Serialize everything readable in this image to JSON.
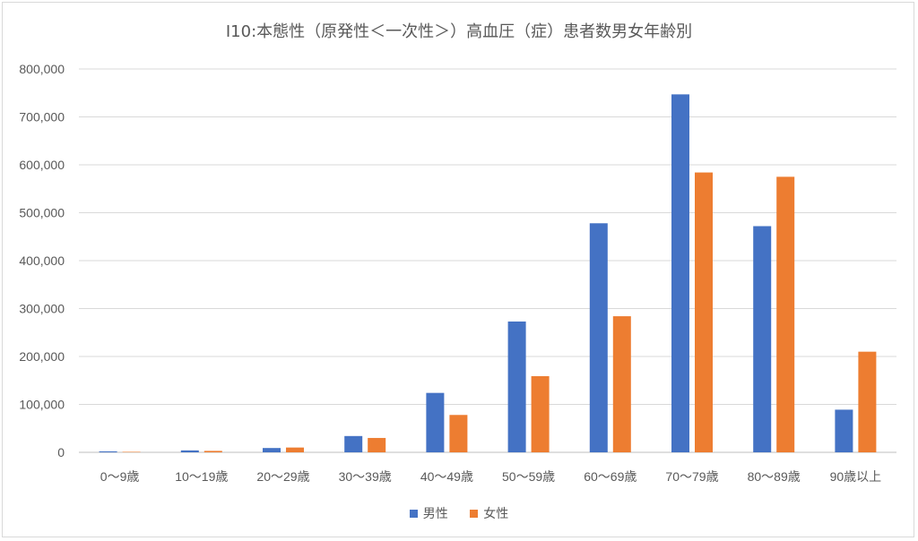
{
  "chart_data": {
    "type": "bar",
    "title": "I10:本態性（原発性＜一次性＞）高血圧（症）患者数男女年齢別",
    "categories": [
      "0〜9歳",
      "10〜19歳",
      "20〜29歳",
      "30〜39歳",
      "40〜49歳",
      "50〜59歳",
      "60〜69歳",
      "70〜79歳",
      "80〜89歳",
      "90歳以上"
    ],
    "series": [
      {
        "name": "男性",
        "color": "#4472c4",
        "values": [
          2000,
          4000,
          9000,
          34000,
          124000,
          273000,
          478000,
          747000,
          472000,
          89000
        ]
      },
      {
        "name": "女性",
        "color": "#ed7d31",
        "values": [
          1000,
          3000,
          10000,
          30000,
          78000,
          159000,
          284000,
          584000,
          575000,
          210000
        ]
      }
    ],
    "y_ticks": [
      "0",
      "100,000",
      "200,000",
      "300,000",
      "400,000",
      "500,000",
      "600,000",
      "700,000",
      "800,000"
    ],
    "ylim": [
      0,
      800000
    ],
    "grid": true,
    "legend_position": "bottom"
  }
}
